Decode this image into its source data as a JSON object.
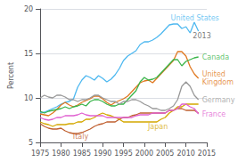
{
  "chart_data": {
    "type": "line",
    "ylabel": "Percent",
    "xlim": [
      1975,
      2015
    ],
    "ylim": [
      5,
      20
    ],
    "xticks": [
      1975,
      1980,
      1985,
      1990,
      1995,
      2000,
      2005,
      2010,
      2015
    ],
    "yticks": [
      5,
      10,
      15,
      20
    ],
    "grid": true,
    "x": [
      1975,
      1976,
      1977,
      1978,
      1979,
      1980,
      1981,
      1982,
      1983,
      1984,
      1985,
      1986,
      1987,
      1988,
      1989,
      1990,
      1991,
      1992,
      1993,
      1994,
      1995,
      1996,
      1997,
      1998,
      1999,
      2000,
      2001,
      2002,
      2003,
      2004,
      2005,
      2006,
      2007,
      2008,
      2009,
      2010,
      2011,
      2012,
      2013
    ],
    "series": [
      {
        "name": "United States",
        "color": "#4db8f0",
        "values": [
          8.3,
          8.4,
          8.6,
          8.8,
          9.0,
          9.3,
          9.5,
          9.6,
          9.9,
          11.2,
          12.0,
          12.5,
          12.3,
          12.0,
          12.5,
          12.2,
          11.8,
          12.1,
          12.6,
          13.3,
          14.2,
          14.7,
          15.0,
          15.3,
          16.0,
          16.3,
          16.3,
          16.5,
          16.8,
          17.2,
          17.7,
          18.2,
          18.3,
          18.3,
          17.8,
          18.0,
          17.3,
          18.5,
          17.5
        ]
      },
      {
        "name": "United Kingdom",
        "color": "#e07820",
        "values": [
          8.2,
          8.1,
          8.0,
          8.3,
          8.7,
          9.2,
          9.5,
          9.2,
          9.0,
          9.2,
          9.5,
          9.7,
          9.9,
          10.2,
          10.2,
          9.9,
          9.5,
          9.2,
          9.5,
          9.7,
          9.9,
          10.2,
          10.7,
          11.2,
          11.7,
          11.9,
          12.0,
          11.7,
          12.2,
          12.7,
          13.2,
          13.7,
          14.2,
          15.2,
          15.2,
          14.7,
          13.5,
          12.7,
          12.2
        ]
      },
      {
        "name": "Canada",
        "color": "#3ab54a",
        "values": [
          8.5,
          8.3,
          8.5,
          8.6,
          8.7,
          8.8,
          9.0,
          8.8,
          9.0,
          9.1,
          9.3,
          9.1,
          9.6,
          9.8,
          9.8,
          9.6,
          9.3,
          9.1,
          9.1,
          9.3,
          9.3,
          9.8,
          10.3,
          10.8,
          11.8,
          12.3,
          12.0,
          12.1,
          12.3,
          12.8,
          13.3,
          13.8,
          14.3,
          14.3,
          13.6,
          14.1,
          14.3,
          14.5,
          14.6
        ]
      },
      {
        "name": "Germany",
        "color": "#999999",
        "values": [
          10.0,
          10.3,
          10.1,
          10.0,
          10.3,
          10.3,
          10.1,
          9.8,
          9.8,
          9.6,
          9.8,
          9.8,
          10.0,
          10.3,
          10.3,
          10.0,
          9.8,
          9.6,
          9.6,
          9.3,
          9.6,
          9.6,
          9.8,
          9.8,
          9.6,
          9.3,
          9.1,
          8.8,
          8.8,
          8.6,
          8.6,
          8.8,
          9.1,
          9.8,
          11.3,
          11.8,
          11.3,
          10.3,
          9.8
        ]
      },
      {
        "name": "Italy",
        "color": "#c06030",
        "values": [
          7.1,
          6.8,
          6.6,
          6.5,
          6.5,
          6.6,
          6.3,
          6.1,
          6.0,
          6.0,
          6.1,
          6.3,
          6.5,
          6.8,
          7.0,
          7.1,
          7.3,
          7.3,
          7.3,
          7.6,
          7.8,
          7.8,
          8.0,
          8.1,
          8.3,
          8.3,
          8.3,
          8.3,
          8.3,
          8.3,
          8.3,
          8.6,
          8.6,
          8.8,
          8.8,
          8.6,
          8.6,
          8.6,
          8.3
        ]
      },
      {
        "name": "Japan",
        "color": "#d4a800",
        "values": [
          7.3,
          7.1,
          7.0,
          6.8,
          7.0,
          7.0,
          7.0,
          7.1,
          7.1,
          7.3,
          7.3,
          7.6,
          7.6,
          7.8,
          8.1,
          8.3,
          8.1,
          8.0,
          7.8,
          7.6,
          7.3,
          7.3,
          7.3,
          7.3,
          7.3,
          7.3,
          7.3,
          7.3,
          7.3,
          7.6,
          7.8,
          8.3,
          8.6,
          9.0,
          9.0,
          9.3,
          9.3,
          9.3,
          9.3
        ]
      },
      {
        "name": "France",
        "color": "#e060d0",
        "values": [
          7.8,
          7.6,
          7.5,
          7.6,
          7.8,
          7.8,
          8.0,
          8.0,
          8.0,
          8.1,
          8.3,
          8.1,
          8.0,
          8.0,
          8.0,
          8.0,
          7.8,
          7.8,
          7.8,
          7.8,
          7.8,
          7.8,
          7.8,
          8.0,
          8.1,
          8.1,
          8.1,
          8.3,
          8.3,
          8.3,
          8.3,
          8.6,
          8.6,
          8.8,
          9.3,
          9.3,
          9.0,
          8.8,
          8.2
        ]
      }
    ],
    "annotations": [
      {
        "text": "United States",
        "x": 2005.5,
        "y": 19.0,
        "color": "#4db8f0"
      },
      {
        "text": "2013",
        "x": 2010.8,
        "y": 17.0,
        "color": "#555555"
      },
      {
        "text": "United\nKingdom",
        "x": 2013,
        "y": 12.2,
        "color": "#e07820"
      },
      {
        "text": "Canada",
        "x": 2013,
        "y": 14.6,
        "color": "#3ab54a"
      },
      {
        "text": "Germany",
        "x": 2013,
        "y": 9.8,
        "color": "#999999"
      },
      {
        "text": "France",
        "x": 2013,
        "y": 8.2,
        "color": "#e060d0"
      },
      {
        "text": "Italy",
        "x": 1982,
        "y": 5.7,
        "color": "#c06030"
      },
      {
        "text": "Japan",
        "x": 2000,
        "y": 6.8,
        "color": "#d4a800"
      }
    ]
  }
}
